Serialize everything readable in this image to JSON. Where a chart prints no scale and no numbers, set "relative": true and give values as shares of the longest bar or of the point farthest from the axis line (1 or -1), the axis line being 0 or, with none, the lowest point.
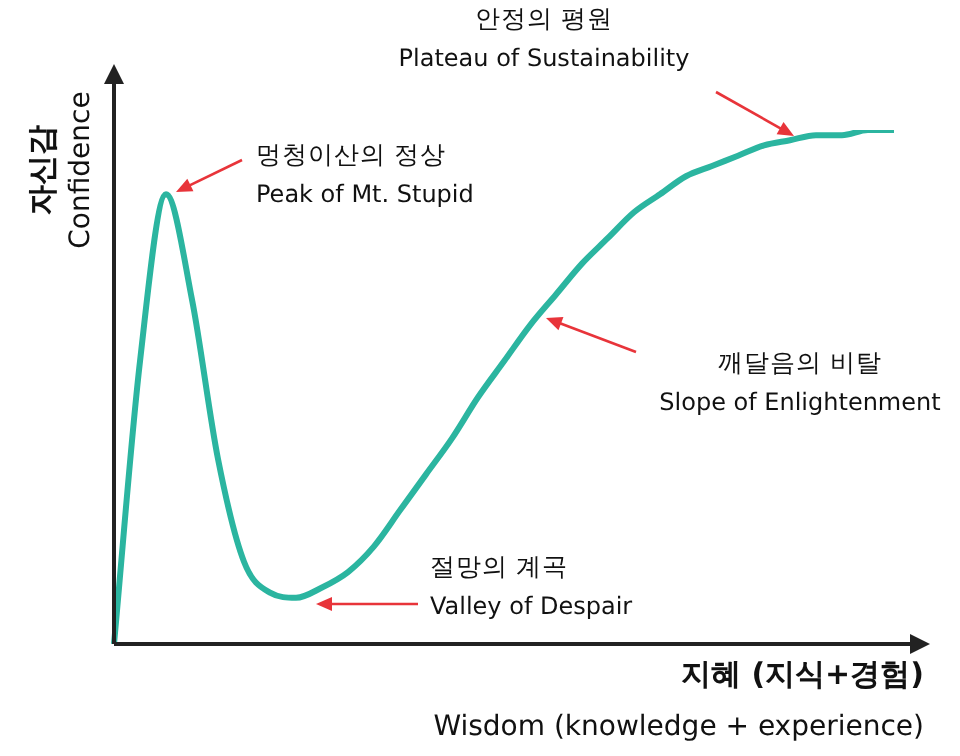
{
  "chart_data": {
    "type": "line",
    "relative": true,
    "xlabel": "지혜 (지식+경험)\nWisdom (knowledge + experience)",
    "ylabel": "자신감\nConfidence",
    "categories": [
      null,
      null,
      null,
      null,
      null,
      null,
      null,
      null,
      null,
      null,
      null,
      null,
      null,
      null,
      null,
      null,
      null,
      null,
      null,
      null,
      null,
      null,
      null,
      null,
      null,
      null,
      null,
      null,
      null,
      null,
      null
    ],
    "series": [
      {
        "color": "#2bb5a0",
        "values": [
          0,
          0.55,
          0.875,
          0.67,
          0.36,
          0.16,
          0.1,
          0.09,
          0.11,
          0.14,
          0.19,
          0.26,
          0.33,
          0.4,
          0.48,
          0.55,
          0.62,
          0.68,
          0.74,
          0.79,
          0.84,
          0.875,
          0.91,
          0.93,
          0.95,
          0.97,
          0.98,
          0.99,
          0.99,
          1,
          1
        ]
      }
    ],
    "annotations": [
      "안정의 평원\nPlateau of Sustainability",
      "멍청이산의 정상\nPeak of Mt. Stupid",
      "깨달음의 비탈\nSlope of Enlightenment",
      "절망의 계곡\nValley of Despair"
    ],
    "marker": "none",
    "line_style": "solid",
    "legend": false
  }
}
